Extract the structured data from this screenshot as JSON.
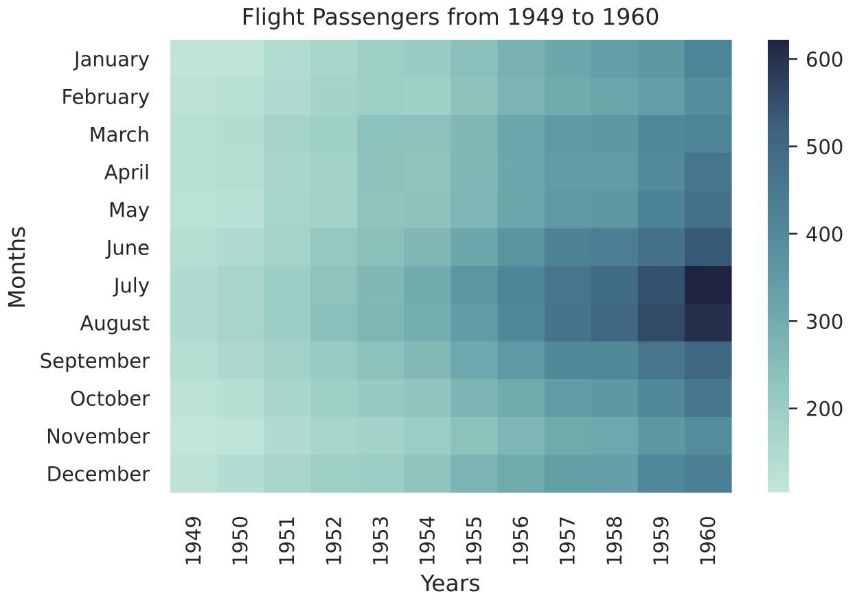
{
  "chart_data": {
    "type": "heatmap",
    "title": "Flight Passengers from 1949 to 1960",
    "xlabel": "Years",
    "ylabel": "Months",
    "x": [
      "1949",
      "1950",
      "1951",
      "1952",
      "1953",
      "1954",
      "1955",
      "1956",
      "1957",
      "1958",
      "1959",
      "1960"
    ],
    "y": [
      "January",
      "February",
      "March",
      "April",
      "May",
      "June",
      "July",
      "August",
      "September",
      "October",
      "November",
      "December"
    ],
    "values": [
      [
        112,
        115,
        145,
        171,
        196,
        204,
        242,
        284,
        315,
        340,
        360,
        417
      ],
      [
        118,
        126,
        150,
        180,
        196,
        188,
        233,
        277,
        301,
        318,
        342,
        391
      ],
      [
        132,
        141,
        178,
        193,
        236,
        235,
        267,
        317,
        356,
        362,
        406,
        419
      ],
      [
        129,
        135,
        163,
        181,
        235,
        227,
        269,
        313,
        348,
        348,
        396,
        461
      ],
      [
        121,
        125,
        172,
        183,
        229,
        234,
        270,
        318,
        355,
        363,
        420,
        472
      ],
      [
        135,
        149,
        178,
        218,
        243,
        264,
        315,
        374,
        422,
        435,
        472,
        535
      ],
      [
        148,
        170,
        199,
        230,
        264,
        302,
        364,
        413,
        465,
        491,
        548,
        622
      ],
      [
        148,
        170,
        199,
        242,
        272,
        293,
        347,
        405,
        467,
        505,
        559,
        606
      ],
      [
        136,
        158,
        184,
        209,
        237,
        259,
        312,
        355,
        404,
        404,
        463,
        508
      ],
      [
        119,
        133,
        162,
        191,
        211,
        229,
        274,
        306,
        347,
        359,
        407,
        461
      ],
      [
        104,
        114,
        146,
        172,
        180,
        203,
        237,
        271,
        305,
        310,
        362,
        390
      ],
      [
        118,
        140,
        166,
        194,
        201,
        229,
        278,
        306,
        336,
        337,
        405,
        432
      ]
    ],
    "colorbar": {
      "min": 104,
      "max": 622,
      "ticks": [
        200,
        300,
        400,
        500,
        600
      ],
      "colors": [
        "#c2e6da",
        "#98ccc2",
        "#6ea8ac",
        "#4e8597",
        "#3d6380",
        "#1f2541"
      ]
    }
  }
}
